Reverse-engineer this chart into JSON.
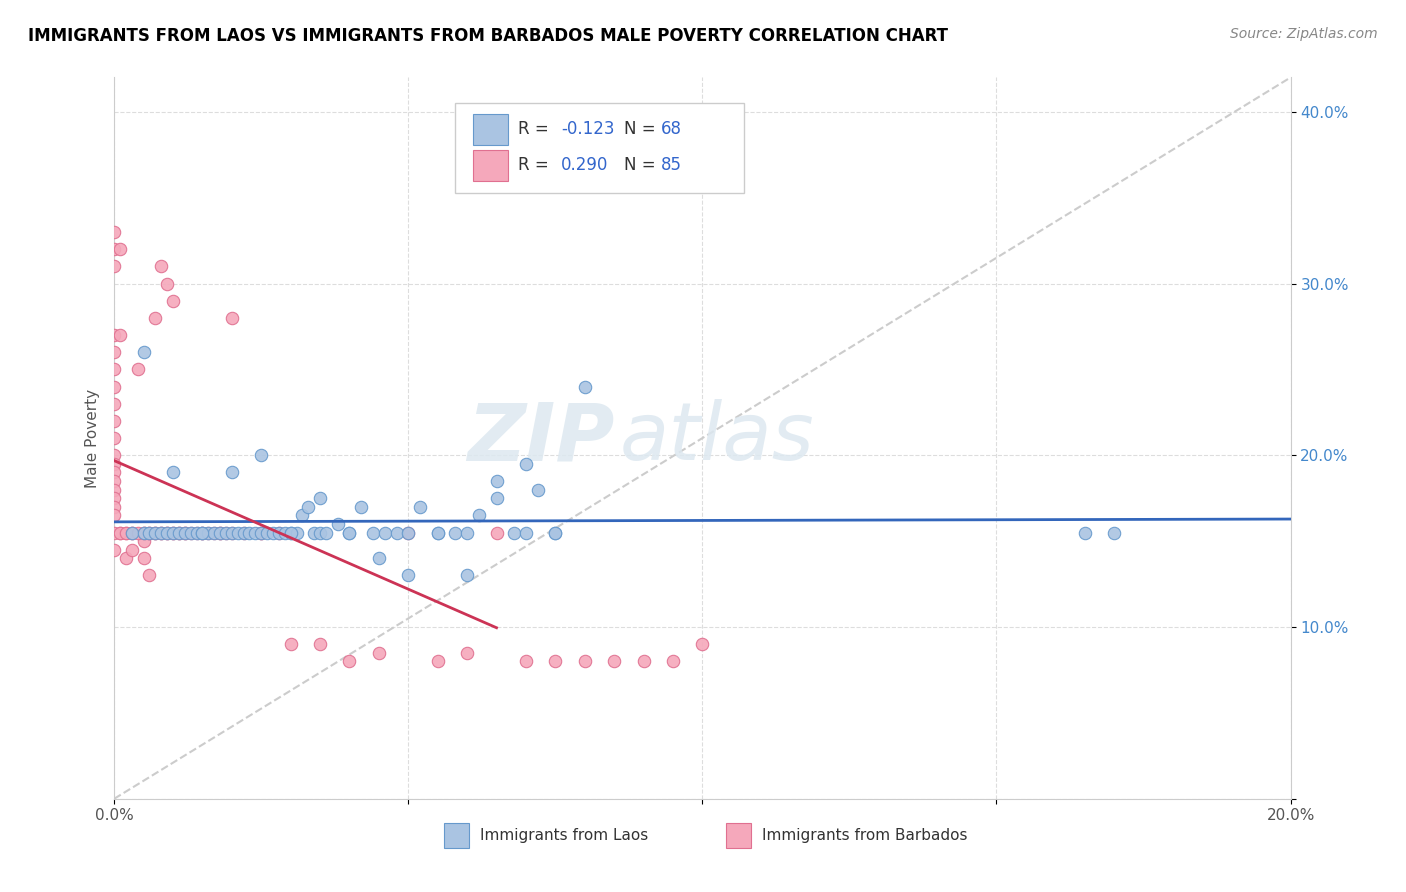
{
  "title": "IMMIGRANTS FROM LAOS VS IMMIGRANTS FROM BARBADOS MALE POVERTY CORRELATION CHART",
  "source": "Source: ZipAtlas.com",
  "ylabel": "Male Poverty",
  "xlim": [
    0.0,
    0.2
  ],
  "ylim": [
    0.0,
    0.42
  ],
  "x_ticks": [
    0.0,
    0.05,
    0.1,
    0.15,
    0.2
  ],
  "x_tick_labels": [
    "0.0%",
    "",
    "",
    "",
    "20.0%"
  ],
  "y_ticks": [
    0.0,
    0.1,
    0.2,
    0.3,
    0.4
  ],
  "y_tick_labels": [
    "",
    "10.0%",
    "20.0%",
    "30.0%",
    "40.0%"
  ],
  "laos_color": "#aac4e2",
  "laos_edge": "#6699cc",
  "barbados_color": "#f5a8bb",
  "barbados_edge": "#e07090",
  "laos_R": -0.123,
  "laos_N": 68,
  "barbados_R": 0.29,
  "barbados_N": 85,
  "laos_line_color": "#3366bb",
  "barbados_line_color": "#cc3355",
  "diagonal_color": "#cccccc",
  "watermark_zip": "ZIP",
  "watermark_atlas": "atlas",
  "legend_label_laos": "Immigrants from Laos",
  "legend_label_barbados": "Immigrants from Barbados",
  "laos_x": [
    0.003,
    0.005,
    0.006,
    0.007,
    0.008,
    0.009,
    0.01,
    0.011,
    0.012,
    0.013,
    0.014,
    0.015,
    0.016,
    0.017,
    0.018,
    0.019,
    0.02,
    0.021,
    0.022,
    0.023,
    0.024,
    0.025,
    0.026,
    0.027,
    0.028,
    0.029,
    0.03,
    0.031,
    0.032,
    0.033,
    0.034,
    0.035,
    0.036,
    0.038,
    0.04,
    0.042,
    0.044,
    0.046,
    0.048,
    0.05,
    0.052,
    0.055,
    0.058,
    0.06,
    0.062,
    0.065,
    0.068,
    0.07,
    0.072,
    0.075,
    0.005,
    0.01,
    0.015,
    0.02,
    0.025,
    0.03,
    0.035,
    0.04,
    0.045,
    0.05,
    0.055,
    0.06,
    0.065,
    0.07,
    0.075,
    0.08,
    0.17,
    0.165
  ],
  "laos_y": [
    0.155,
    0.155,
    0.155,
    0.155,
    0.155,
    0.155,
    0.155,
    0.155,
    0.155,
    0.155,
    0.155,
    0.155,
    0.155,
    0.155,
    0.155,
    0.155,
    0.155,
    0.155,
    0.155,
    0.155,
    0.155,
    0.155,
    0.155,
    0.155,
    0.155,
    0.155,
    0.155,
    0.155,
    0.165,
    0.17,
    0.155,
    0.155,
    0.155,
    0.16,
    0.155,
    0.17,
    0.155,
    0.155,
    0.155,
    0.155,
    0.17,
    0.155,
    0.155,
    0.155,
    0.165,
    0.175,
    0.155,
    0.155,
    0.18,
    0.155,
    0.26,
    0.19,
    0.155,
    0.19,
    0.2,
    0.155,
    0.175,
    0.155,
    0.14,
    0.13,
    0.155,
    0.13,
    0.185,
    0.195,
    0.155,
    0.24,
    0.155,
    0.155
  ],
  "barbados_x": [
    0.0,
    0.0,
    0.0,
    0.0,
    0.001,
    0.001,
    0.001,
    0.002,
    0.002,
    0.003,
    0.003,
    0.004,
    0.005,
    0.005,
    0.005,
    0.006,
    0.006,
    0.007,
    0.007,
    0.008,
    0.008,
    0.009,
    0.009,
    0.01,
    0.01,
    0.011,
    0.012,
    0.013,
    0.014,
    0.015,
    0.016,
    0.017,
    0.018,
    0.019,
    0.02,
    0.022,
    0.025,
    0.028,
    0.0,
    0.0,
    0.0,
    0.0,
    0.0,
    0.0,
    0.0,
    0.0,
    0.0,
    0.0,
    0.0,
    0.0,
    0.0,
    0.0,
    0.0,
    0.0,
    0.001,
    0.002,
    0.003,
    0.004,
    0.005,
    0.006,
    0.007,
    0.008,
    0.009,
    0.01,
    0.011,
    0.012,
    0.015,
    0.018,
    0.02,
    0.025,
    0.03,
    0.035,
    0.04,
    0.045,
    0.05,
    0.055,
    0.06,
    0.065,
    0.07,
    0.075,
    0.08,
    0.085,
    0.09,
    0.095,
    0.1
  ],
  "barbados_y": [
    0.33,
    0.32,
    0.31,
    0.27,
    0.32,
    0.27,
    0.155,
    0.155,
    0.14,
    0.155,
    0.145,
    0.25,
    0.155,
    0.15,
    0.14,
    0.155,
    0.13,
    0.28,
    0.155,
    0.31,
    0.155,
    0.3,
    0.155,
    0.29,
    0.155,
    0.155,
    0.155,
    0.155,
    0.155,
    0.155,
    0.155,
    0.155,
    0.155,
    0.155,
    0.28,
    0.155,
    0.155,
    0.155,
    0.26,
    0.25,
    0.24,
    0.23,
    0.22,
    0.21,
    0.2,
    0.195,
    0.19,
    0.185,
    0.18,
    0.175,
    0.17,
    0.165,
    0.155,
    0.145,
    0.155,
    0.155,
    0.155,
    0.155,
    0.155,
    0.155,
    0.155,
    0.155,
    0.155,
    0.155,
    0.155,
    0.155,
    0.155,
    0.155,
    0.155,
    0.155,
    0.09,
    0.09,
    0.08,
    0.085,
    0.155,
    0.08,
    0.085,
    0.155,
    0.08,
    0.08,
    0.08,
    0.08,
    0.08,
    0.08,
    0.09
  ]
}
